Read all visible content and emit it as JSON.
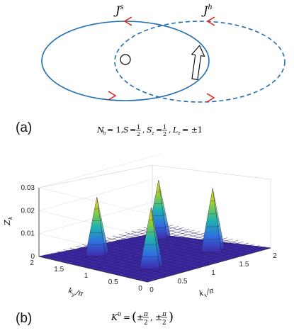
{
  "panel_a": {
    "label": "(a)",
    "loop_left_label": "J",
    "loop_left_sup": "s",
    "loop_right_label": "J",
    "loop_right_sup": "h",
    "caption": "N_h = 1, S = 1/2, S_z = 1/2, L_z = ±1",
    "colors": {
      "loop": "#1f6fb5",
      "arrow": "#e0201b"
    }
  },
  "panel_b": {
    "label": "(b)",
    "caption": "K^0 = (±π/2, ±π/2)",
    "chart_data": {
      "type": "surface",
      "zlabel": "Z_k",
      "xlabel": "k_x/π",
      "ylabel": "k_y/π",
      "xlim": [
        0,
        2
      ],
      "ylim": [
        0,
        2
      ],
      "zlim": [
        0,
        0.03
      ],
      "x_ticks": [
        "0",
        "0.5",
        "1",
        "1.5",
        "2"
      ],
      "y_ticks": [
        "0",
        "0.5",
        "1",
        "1.5",
        "2"
      ],
      "z_ticks": [
        "0",
        "0.01",
        "0.02",
        "0.03"
      ],
      "peaks": [
        {
          "kx": 0.5,
          "ky": 0.5,
          "z": 0.026
        },
        {
          "kx": 1.5,
          "ky": 0.5,
          "z": 0.027
        },
        {
          "kx": 0.5,
          "ky": 1.5,
          "z": 0.025
        },
        {
          "kx": 1.5,
          "ky": 1.5,
          "z": 0.025
        }
      ],
      "colormap": "parula",
      "grid": true
    }
  }
}
